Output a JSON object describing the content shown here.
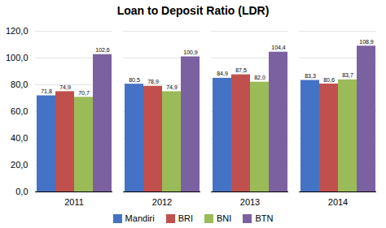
{
  "chart_data": {
    "type": "bar",
    "title": "Loan to Deposit Ratio (LDR)",
    "categories": [
      "2011",
      "2012",
      "2013",
      "2014"
    ],
    "series": [
      {
        "name": "Mandiri",
        "color": "#4472C4",
        "values": [
          71.8,
          80.5,
          84.9,
          83.3
        ],
        "value_labels": [
          "71,8",
          "80,5",
          "84,9",
          "83,3"
        ]
      },
      {
        "name": "BRI",
        "color": "#C0504D",
        "values": [
          74.9,
          78.9,
          87.5,
          80.6
        ],
        "value_labels": [
          "74,9",
          "78,9",
          "87,5",
          "80,6"
        ]
      },
      {
        "name": "BNI",
        "color": "#9BBB59",
        "values": [
          70.7,
          74.9,
          82.0,
          83.7
        ],
        "value_labels": [
          "70,7",
          "74,9",
          "82,0",
          "83,7"
        ]
      },
      {
        "name": "BTN",
        "color": "#7B61A0",
        "values": [
          102.6,
          100.9,
          104.4,
          108.9
        ],
        "value_labels": [
          "102,6",
          "100,9",
          "104,4",
          "108,9"
        ]
      }
    ],
    "ylim": [
      0,
      120
    ],
    "yticks": [
      {
        "value": 0,
        "label": "0,0"
      },
      {
        "value": 20,
        "label": "20,0"
      },
      {
        "value": 40,
        "label": "40,0"
      },
      {
        "value": 60,
        "label": "60,0"
      },
      {
        "value": 80,
        "label": "80,0"
      },
      {
        "value": 100,
        "label": "100,0"
      },
      {
        "value": 120,
        "label": "120,0"
      }
    ],
    "grid": true,
    "legend": "bottom",
    "data_labels": true
  }
}
